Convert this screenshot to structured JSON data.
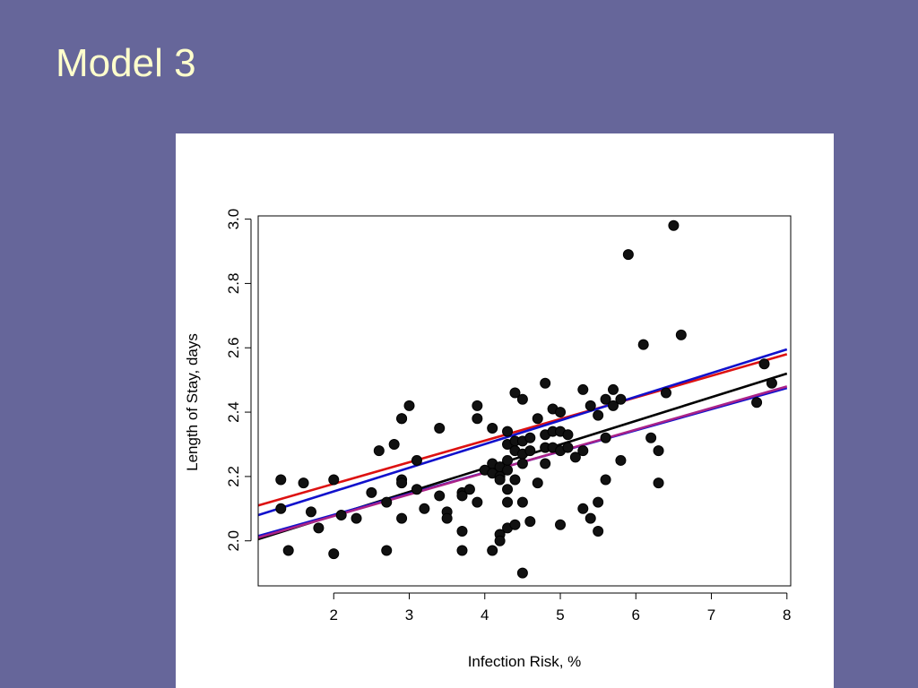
{
  "slide": {
    "title": "Model 3"
  },
  "chart_data": {
    "type": "scatter",
    "title": "",
    "xlabel": "Infection Risk, %",
    "ylabel": "Length of Stay, days",
    "xlim": [
      1.0,
      8.05
    ],
    "ylim": [
      1.86,
      3.01
    ],
    "x_ticks": [
      2,
      3,
      4,
      5,
      6,
      7,
      8
    ],
    "y_ticks": [
      2.0,
      2.2,
      2.4,
      2.6,
      2.8,
      3.0
    ],
    "x_tick_labels": [
      "2",
      "3",
      "4",
      "5",
      "6",
      "7",
      "8"
    ],
    "y_tick_labels": [
      "2.0",
      "2.2",
      "2.4",
      "2.6",
      "2.8",
      "3.0"
    ],
    "grid": false,
    "legend": "none",
    "points": [
      [
        1.3,
        2.19
      ],
      [
        1.3,
        2.1
      ],
      [
        1.4,
        1.97
      ],
      [
        1.6,
        2.18
      ],
      [
        1.7,
        2.09
      ],
      [
        1.8,
        2.04
      ],
      [
        2.0,
        2.19
      ],
      [
        2.0,
        1.96
      ],
      [
        2.1,
        2.08
      ],
      [
        2.3,
        2.07
      ],
      [
        2.5,
        2.15
      ],
      [
        2.6,
        2.28
      ],
      [
        2.7,
        2.12
      ],
      [
        2.7,
        1.97
      ],
      [
        2.8,
        2.3
      ],
      [
        2.9,
        2.38
      ],
      [
        2.9,
        2.38
      ],
      [
        2.9,
        2.19
      ],
      [
        2.9,
        2.18
      ],
      [
        2.9,
        2.07
      ],
      [
        3.0,
        2.42
      ],
      [
        3.1,
        2.25
      ],
      [
        3.1,
        2.16
      ],
      [
        3.2,
        2.1
      ],
      [
        3.4,
        2.35
      ],
      [
        3.4,
        2.14
      ],
      [
        3.5,
        2.09
      ],
      [
        3.5,
        2.07
      ],
      [
        3.7,
        2.15
      ],
      [
        3.7,
        2.14
      ],
      [
        3.7,
        2.03
      ],
      [
        3.7,
        1.97
      ],
      [
        3.8,
        2.16
      ],
      [
        3.9,
        2.42
      ],
      [
        3.9,
        2.38
      ],
      [
        3.9,
        2.12
      ],
      [
        4.0,
        2.22
      ],
      [
        4.1,
        2.35
      ],
      [
        4.1,
        2.24
      ],
      [
        4.1,
        2.21
      ],
      [
        4.1,
        1.97
      ],
      [
        4.2,
        2.2
      ],
      [
        4.2,
        2.23
      ],
      [
        4.2,
        2.19
      ],
      [
        4.2,
        2.02
      ],
      [
        4.2,
        2.0
      ],
      [
        4.3,
        2.34
      ],
      [
        4.3,
        2.3
      ],
      [
        4.3,
        2.25
      ],
      [
        4.3,
        2.22
      ],
      [
        4.3,
        2.16
      ],
      [
        4.3,
        2.12
      ],
      [
        4.3,
        2.04
      ],
      [
        4.4,
        2.46
      ],
      [
        4.4,
        2.31
      ],
      [
        4.4,
        2.28
      ],
      [
        4.4,
        2.19
      ],
      [
        4.4,
        2.05
      ],
      [
        4.5,
        2.44
      ],
      [
        4.5,
        2.31
      ],
      [
        4.5,
        2.27
      ],
      [
        4.5,
        2.24
      ],
      [
        4.5,
        2.12
      ],
      [
        4.5,
        1.9
      ],
      [
        4.6,
        2.32
      ],
      [
        4.6,
        2.28
      ],
      [
        4.6,
        2.06
      ],
      [
        4.7,
        2.38
      ],
      [
        4.7,
        2.18
      ],
      [
        4.8,
        2.49
      ],
      [
        4.8,
        2.33
      ],
      [
        4.8,
        2.29
      ],
      [
        4.8,
        2.24
      ],
      [
        4.9,
        2.41
      ],
      [
        4.9,
        2.34
      ],
      [
        4.9,
        2.29
      ],
      [
        5.0,
        2.4
      ],
      [
        5.0,
        2.34
      ],
      [
        5.0,
        2.28
      ],
      [
        5.0,
        2.05
      ],
      [
        5.1,
        2.33
      ],
      [
        5.1,
        2.29
      ],
      [
        5.2,
        2.26
      ],
      [
        5.3,
        2.47
      ],
      [
        5.3,
        2.28
      ],
      [
        5.3,
        2.1
      ],
      [
        5.4,
        2.42
      ],
      [
        5.4,
        2.07
      ],
      [
        5.5,
        2.39
      ],
      [
        5.5,
        2.12
      ],
      [
        5.5,
        2.03
      ],
      [
        5.6,
        2.44
      ],
      [
        5.6,
        2.32
      ],
      [
        5.6,
        2.19
      ],
      [
        5.7,
        2.47
      ],
      [
        5.7,
        2.42
      ],
      [
        5.8,
        2.44
      ],
      [
        5.8,
        2.25
      ],
      [
        5.9,
        2.89
      ],
      [
        6.1,
        2.61
      ],
      [
        6.2,
        2.32
      ],
      [
        6.3,
        2.28
      ],
      [
        6.3,
        2.18
      ],
      [
        6.4,
        2.46
      ],
      [
        6.5,
        2.98
      ],
      [
        6.6,
        2.64
      ],
      [
        7.6,
        2.43
      ],
      [
        7.7,
        2.55
      ],
      [
        7.8,
        2.49
      ]
    ],
    "lines": [
      {
        "color": "#000000",
        "x": [
          1.0,
          8.0
        ],
        "y": [
          2.005,
          2.52
        ]
      },
      {
        "color": "#dd1111",
        "x": [
          1.0,
          8.0
        ],
        "y": [
          2.11,
          2.58
        ]
      },
      {
        "color": "#1111cc",
        "x": [
          1.0,
          8.0
        ],
        "y": [
          2.08,
          2.595
        ]
      },
      {
        "color": "#1111cc",
        "x": [
          1.0,
          8.0
        ],
        "y": [
          2.015,
          2.475
        ]
      },
      {
        "color": "#aa2288",
        "x": [
          1.0,
          8.0
        ],
        "y": [
          2.01,
          2.48
        ]
      }
    ]
  }
}
